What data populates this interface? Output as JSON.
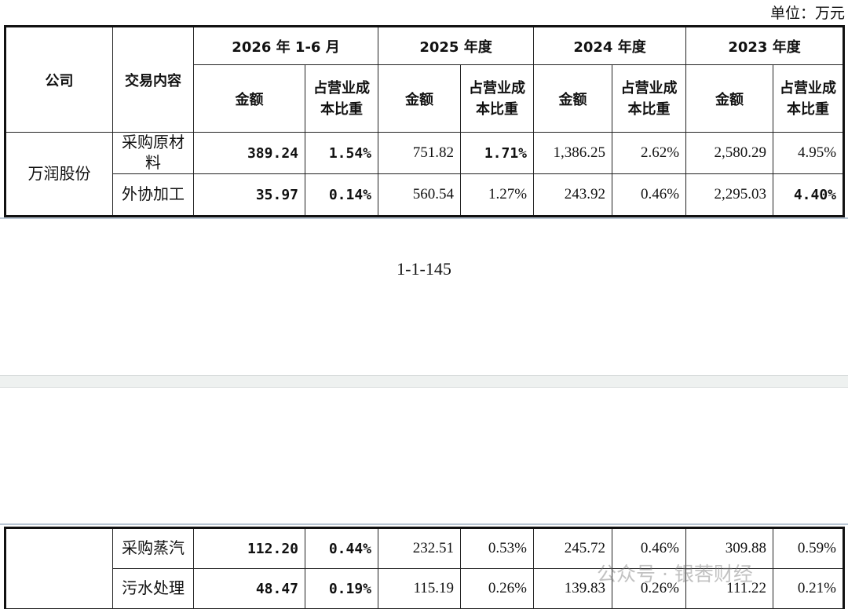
{
  "unit": "单位：万元",
  "header": {
    "company": "公司",
    "content": "交易内容",
    "periods": [
      "2026 年 1-6 月",
      "2025 年度",
      "2024 年度",
      "2023 年度"
    ],
    "amount": "金额",
    "ratio": "占营业成本比重"
  },
  "table1": {
    "company": "万润股份",
    "rows": [
      [
        "采购原材料",
        "389.24",
        "1.54%",
        "751.82",
        "1.71%",
        "1,386.25",
        "2.62%",
        "2,580.29",
        "4.95%"
      ],
      [
        "外协加工",
        "35.97",
        "0.14%",
        "560.54",
        "1.27%",
        "243.92",
        "0.46%",
        "2,295.03",
        "4.40%"
      ]
    ]
  },
  "page_number": "1-1-145",
  "table2": {
    "rows": [
      [
        "采购蒸汽",
        "112.20",
        "0.44%",
        "232.51",
        "0.53%",
        "245.72",
        "0.46%",
        "309.88",
        "0.59%"
      ],
      [
        "污水处理",
        "48.47",
        "0.19%",
        "115.19",
        "0.26%",
        "139.83",
        "0.26%",
        "111.22",
        "0.21%"
      ]
    ]
  },
  "watermark": "公众号 · 银莕财经"
}
